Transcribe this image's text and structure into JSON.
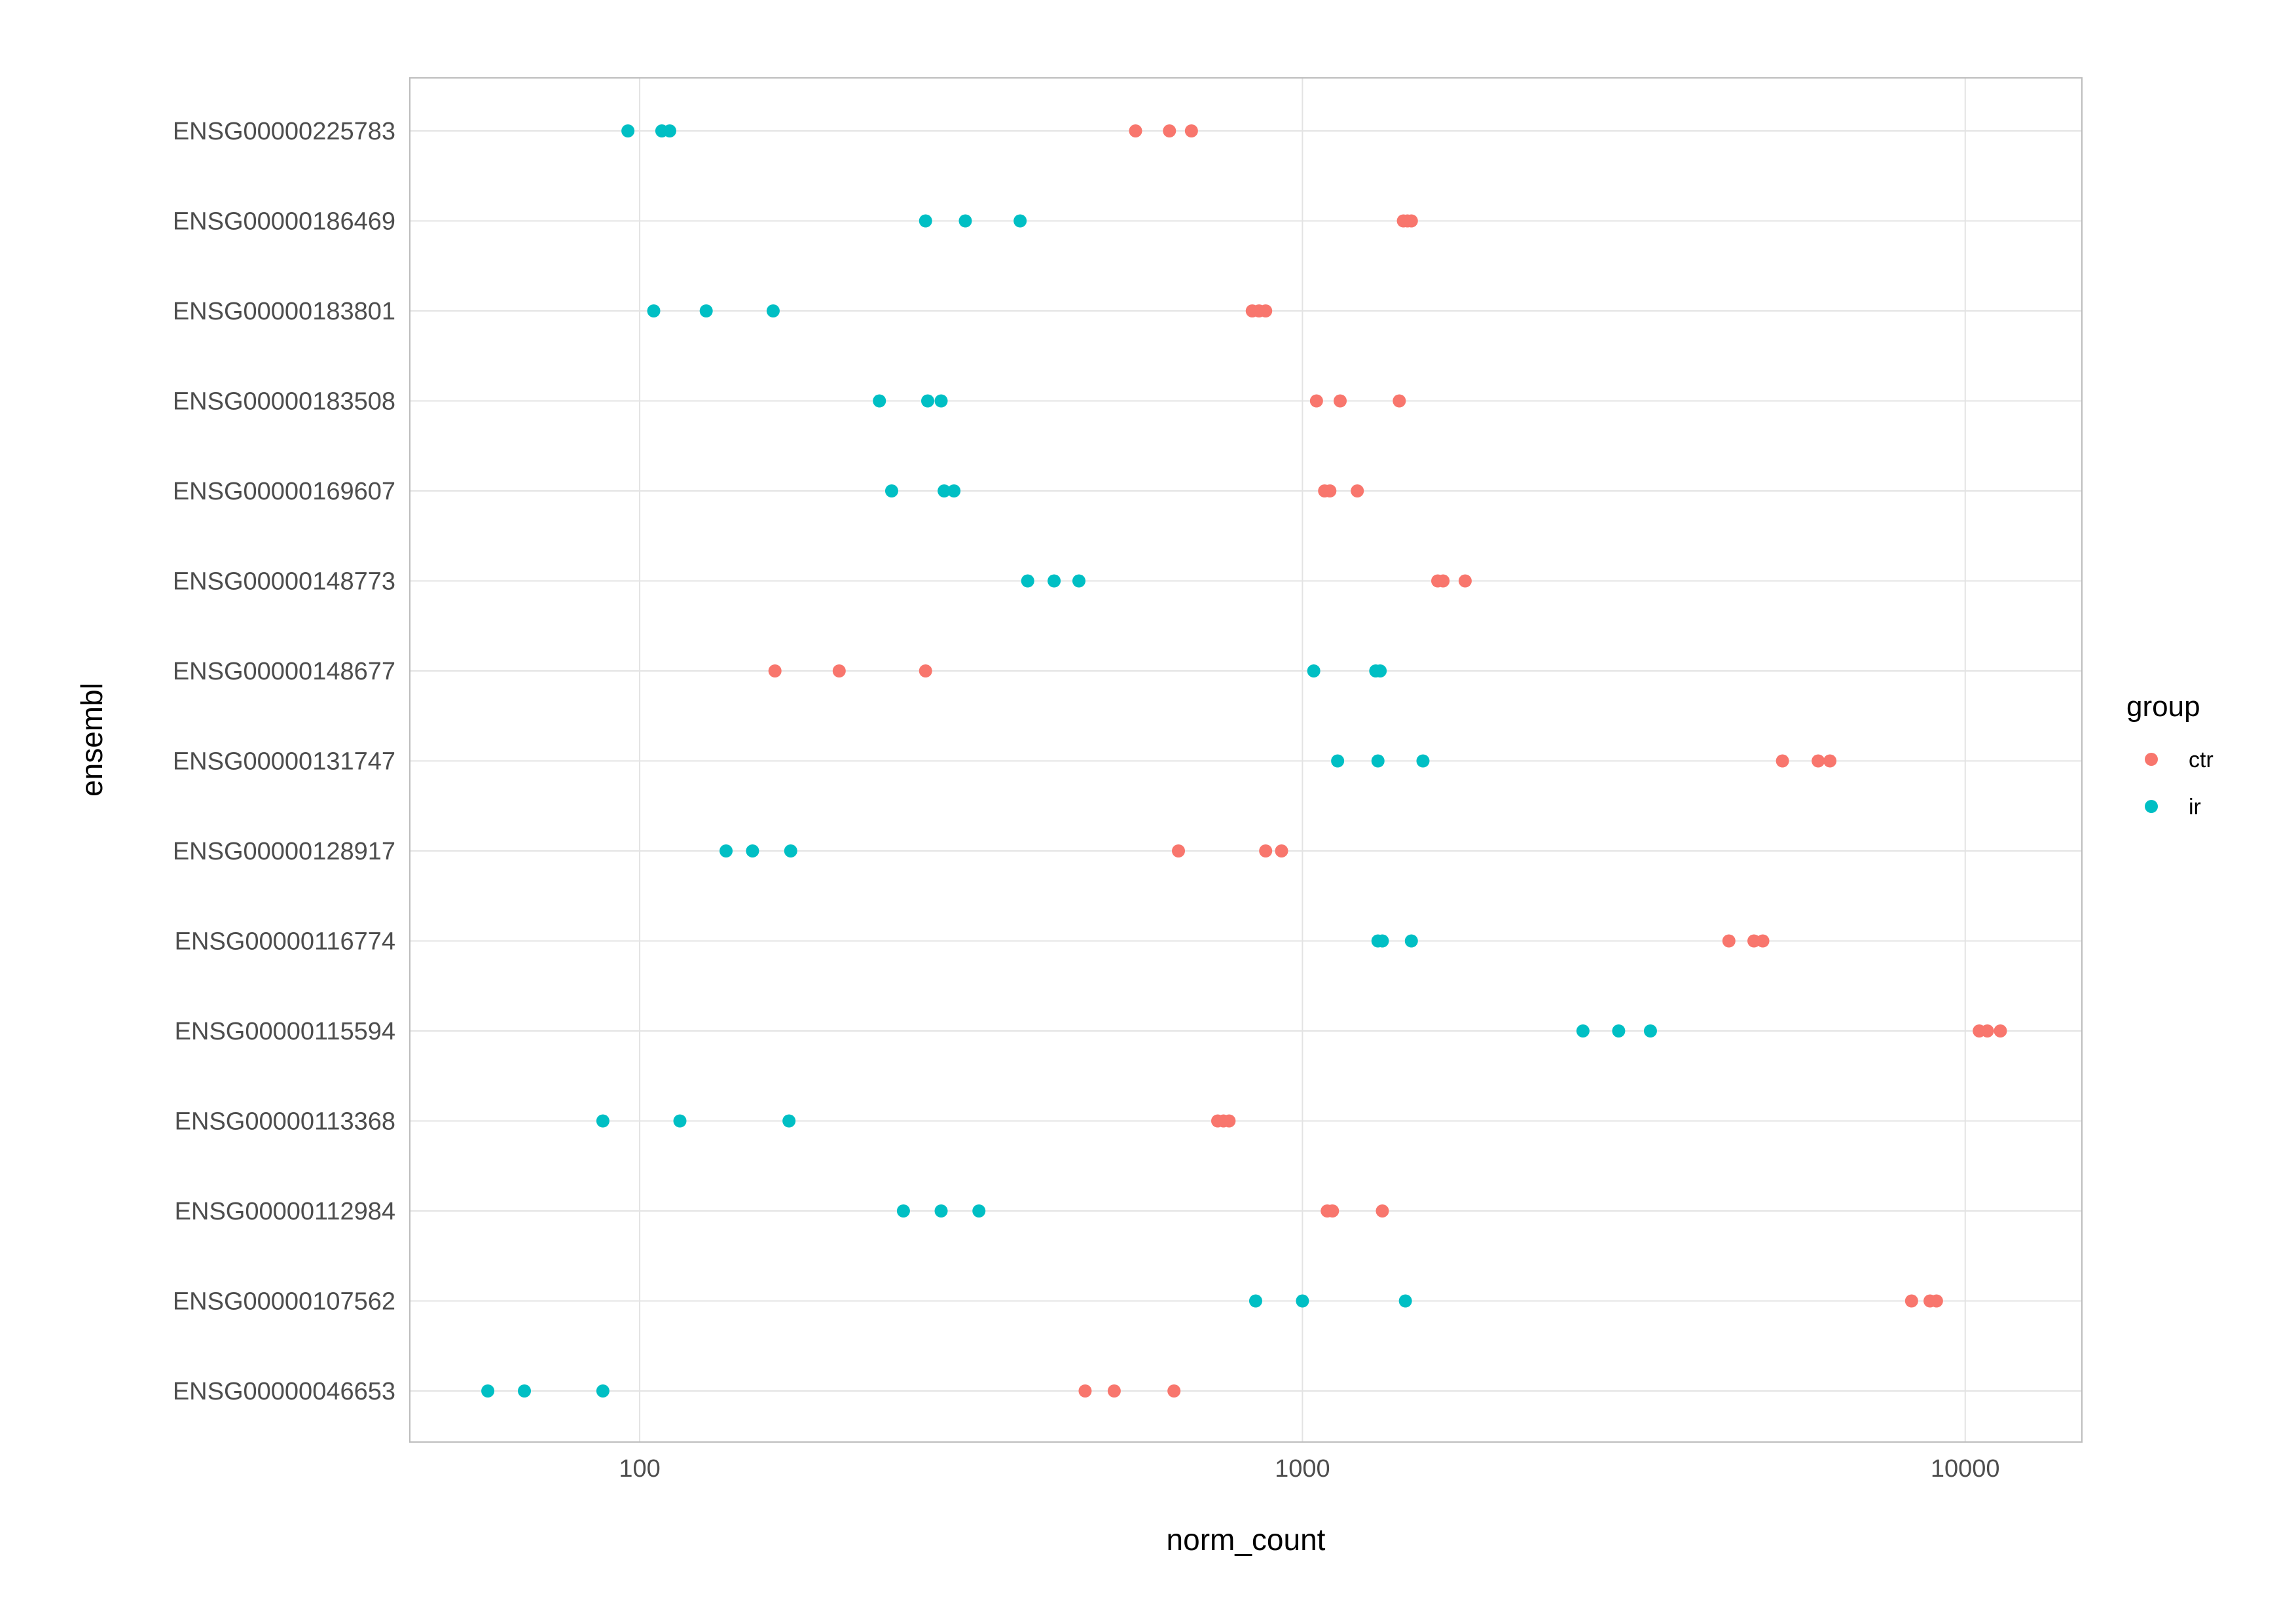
{
  "chart_data": {
    "type": "scatter",
    "title": "",
    "xlabel": "norm_count",
    "ylabel": "ensembl",
    "x_scale": "log10",
    "xlim": [
      45,
      15000
    ],
    "x_ticks": [
      100,
      1000,
      10000
    ],
    "x_tick_labels": [
      "100",
      "1000",
      "10000"
    ],
    "grid": true,
    "legend": {
      "title": "group",
      "position": "right",
      "entries": [
        {
          "name": "ctr",
          "color": "#F8766D"
        },
        {
          "name": "ir",
          "color": "#00BFC4"
        }
      ]
    },
    "categories": [
      "ENSG00000225783",
      "ENSG00000186469",
      "ENSG00000183801",
      "ENSG00000183508",
      "ENSG00000169607",
      "ENSG00000148773",
      "ENSG00000148677",
      "ENSG00000131747",
      "ENSG00000128917",
      "ENSG00000116774",
      "ENSG00000115594",
      "ENSG00000113368",
      "ENSG00000112984",
      "ENSG00000107562",
      "ENSG00000046653"
    ],
    "series": [
      {
        "name": "ctr",
        "color": "#F8766D",
        "values": [
          [
            560,
            630,
            680
          ],
          [
            1420,
            1440,
            1460
          ],
          [
            840,
            860,
            880
          ],
          [
            1050,
            1140,
            1400
          ],
          [
            1080,
            1100,
            1210
          ],
          [
            1600,
            1630,
            1760
          ],
          [
            160,
            200,
            270
          ],
          [
            5300,
            6000,
            6250
          ],
          [
            650,
            880,
            930
          ],
          [
            4400,
            4800,
            4950
          ],
          [
            10500,
            10800,
            11300
          ],
          [
            745,
            760,
            775
          ],
          [
            1090,
            1110,
            1320
          ],
          [
            8300,
            8850,
            9050
          ],
          [
            470,
            520,
            640
          ]
        ]
      },
      {
        "name": "ir",
        "color": "#00BFC4",
        "values": [
          [
            96,
            108,
            111
          ],
          [
            270,
            310,
            375
          ],
          [
            105,
            126,
            159
          ],
          [
            230,
            272,
            285
          ],
          [
            240,
            288,
            298
          ],
          [
            385,
            422,
            460
          ],
          [
            1040,
            1290,
            1310
          ],
          [
            1130,
            1300,
            1520
          ],
          [
            135,
            148,
            169
          ],
          [
            1300,
            1320,
            1460
          ],
          [
            2650,
            3000,
            3350
          ],
          [
            88,
            115,
            168
          ],
          [
            250,
            285,
            325
          ],
          [
            850,
            1000,
            1430
          ],
          [
            59,
            67,
            88
          ]
        ]
      }
    ]
  }
}
